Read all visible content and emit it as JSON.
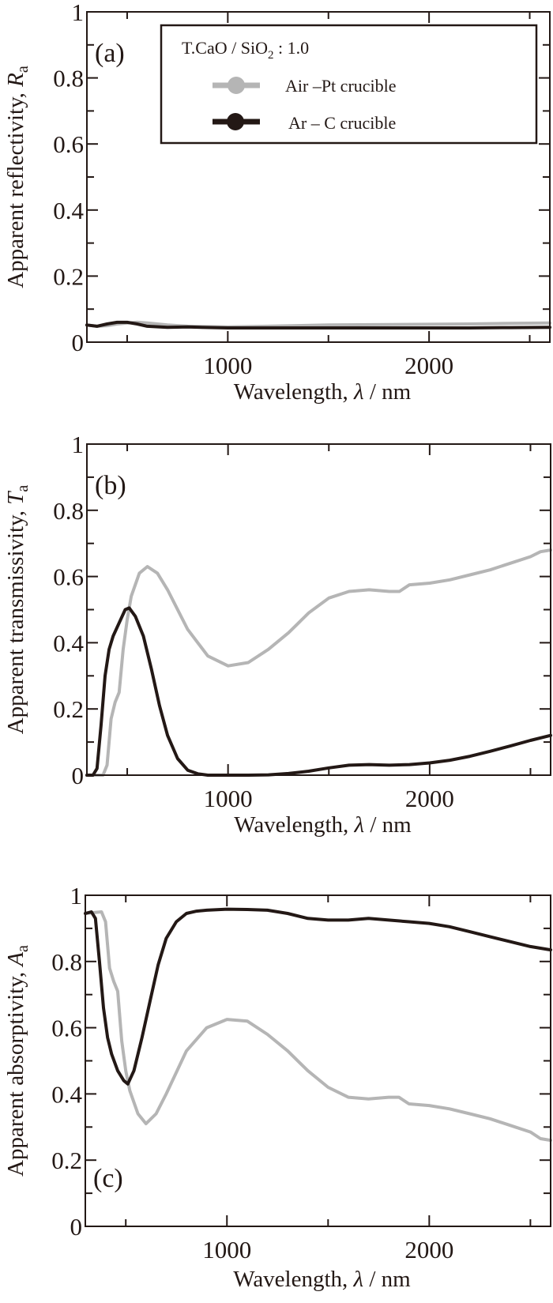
{
  "legend": {
    "title": "T.CaO / SiO",
    "title_sub": "2",
    "title_suffix": " : 1.0",
    "entries": [
      {
        "label": "Air –Pt crucible",
        "color": "#b5b5b5"
      },
      {
        "label": "Ar – C crucible",
        "color": "#231815"
      }
    ]
  },
  "chart_data": [
    {
      "type": "line",
      "panel_label": "(a)",
      "title": "",
      "xlabel": "Wavelength,  λ / nm",
      "ylabel": "Apparent reflectivity, R",
      "ylabel_sub": "a",
      "xlim": [
        300,
        2600
      ],
      "ylim": [
        0,
        1
      ],
      "xticks": [
        1000,
        2000
      ],
      "yticks": [
        0,
        0.2,
        0.4,
        0.6,
        0.8,
        1
      ],
      "ytick_labels": [
        "0",
        "0.2",
        "0.4",
        "0.6",
        "0.8",
        "1"
      ],
      "xtick_labels": [
        "1000",
        "2000"
      ],
      "grid": false,
      "legend_position": "top-right",
      "series": [
        {
          "name": "Air –Pt crucible",
          "color": "#b5b5b5",
          "x": [
            300,
            350,
            400,
            450,
            500,
            550,
            600,
            700,
            800,
            1000,
            1200,
            1500,
            1800,
            2000,
            2200,
            2400,
            2600
          ],
          "y": [
            0.052,
            0.048,
            0.05,
            0.055,
            0.058,
            0.06,
            0.058,
            0.052,
            0.048,
            0.046,
            0.048,
            0.052,
            0.053,
            0.054,
            0.055,
            0.057,
            0.058
          ]
        },
        {
          "name": "Ar – C crucible",
          "color": "#231815",
          "x": [
            300,
            350,
            400,
            450,
            500,
            550,
            600,
            700,
            800,
            1000,
            1200,
            1500,
            1800,
            2000,
            2200,
            2400,
            2600
          ],
          "y": [
            0.052,
            0.048,
            0.055,
            0.06,
            0.06,
            0.055,
            0.048,
            0.045,
            0.046,
            0.043,
            0.043,
            0.043,
            0.043,
            0.043,
            0.043,
            0.044,
            0.045
          ]
        }
      ]
    },
    {
      "type": "line",
      "panel_label": "(b)",
      "title": "",
      "xlabel": "Wavelength,  λ / nm",
      "ylabel": "Apparent transmissivity, T",
      "ylabel_sub": "a",
      "xlim": [
        300,
        2600
      ],
      "ylim": [
        0,
        1
      ],
      "xticks": [
        1000,
        2000
      ],
      "yticks": [
        0,
        0.2,
        0.4,
        0.6,
        0.8,
        1
      ],
      "ytick_labels": [
        "0",
        "0.2",
        "0.4",
        "0.6",
        "0.8",
        "1"
      ],
      "xtick_labels": [
        "1000",
        "2000"
      ],
      "grid": false,
      "series": [
        {
          "name": "Air –Pt crucible",
          "color": "#b5b5b5",
          "x": [
            300,
            380,
            400,
            420,
            440,
            460,
            480,
            500,
            520,
            560,
            600,
            650,
            700,
            800,
            900,
            1000,
            1100,
            1200,
            1300,
            1400,
            1500,
            1600,
            1700,
            1800,
            1850,
            1900,
            2000,
            2100,
            2200,
            2300,
            2400,
            2500,
            2550,
            2600
          ],
          "y": [
            0.0,
            0.0,
            0.03,
            0.17,
            0.22,
            0.25,
            0.38,
            0.47,
            0.54,
            0.61,
            0.63,
            0.61,
            0.56,
            0.44,
            0.36,
            0.33,
            0.34,
            0.38,
            0.43,
            0.49,
            0.535,
            0.555,
            0.56,
            0.555,
            0.555,
            0.575,
            0.58,
            0.59,
            0.605,
            0.62,
            0.64,
            0.66,
            0.675,
            0.68
          ]
        },
        {
          "name": "Ar – C crucible",
          "color": "#231815",
          "x": [
            300,
            330,
            350,
            370,
            390,
            410,
            430,
            460,
            490,
            510,
            540,
            580,
            620,
            660,
            700,
            750,
            800,
            850,
            900,
            1000,
            1100,
            1200,
            1300,
            1400,
            1500,
            1600,
            1700,
            1800,
            1900,
            2000,
            2100,
            2200,
            2300,
            2400,
            2500,
            2600
          ],
          "y": [
            0.0,
            0.0,
            0.02,
            0.15,
            0.3,
            0.38,
            0.42,
            0.46,
            0.5,
            0.505,
            0.48,
            0.42,
            0.32,
            0.21,
            0.12,
            0.05,
            0.015,
            0.004,
            0.0,
            0.0,
            0.0,
            0.001,
            0.005,
            0.012,
            0.022,
            0.03,
            0.032,
            0.03,
            0.032,
            0.037,
            0.045,
            0.057,
            0.072,
            0.088,
            0.105,
            0.12
          ]
        }
      ]
    },
    {
      "type": "line",
      "panel_label": "(c)",
      "title": "",
      "xlabel": "Wavelength,  λ / nm",
      "ylabel": "Apparent absorptivity, A",
      "ylabel_sub": "a",
      "xlim": [
        300,
        2600
      ],
      "ylim": [
        0,
        1
      ],
      "xticks": [
        1000,
        2000
      ],
      "yticks": [
        0,
        0.2,
        0.4,
        0.6,
        0.8,
        1
      ],
      "ytick_labels": [
        "0",
        "0.2",
        "0.4",
        "0.6",
        "0.8",
        "1"
      ],
      "xtick_labels": [
        "1000",
        "2000"
      ],
      "grid": false,
      "series": [
        {
          "name": "Air –Pt crucible",
          "color": "#b5b5b5",
          "x": [
            300,
            380,
            400,
            420,
            440,
            460,
            480,
            500,
            520,
            560,
            600,
            650,
            700,
            800,
            900,
            1000,
            1100,
            1200,
            1300,
            1400,
            1500,
            1600,
            1700,
            1800,
            1850,
            1900,
            2000,
            2100,
            2200,
            2300,
            2400,
            2500,
            2550,
            2600
          ],
          "y": [
            0.945,
            0.95,
            0.92,
            0.78,
            0.74,
            0.71,
            0.56,
            0.47,
            0.41,
            0.34,
            0.31,
            0.34,
            0.4,
            0.53,
            0.6,
            0.625,
            0.62,
            0.58,
            0.53,
            0.47,
            0.42,
            0.39,
            0.385,
            0.39,
            0.39,
            0.37,
            0.365,
            0.355,
            0.34,
            0.325,
            0.305,
            0.285,
            0.265,
            0.26
          ]
        },
        {
          "name": "Ar – C crucible",
          "color": "#231815",
          "x": [
            300,
            330,
            350,
            370,
            390,
            410,
            430,
            460,
            490,
            510,
            540,
            580,
            620,
            660,
            700,
            750,
            800,
            850,
            900,
            1000,
            1100,
            1200,
            1300,
            1400,
            1500,
            1600,
            1700,
            1800,
            1900,
            2000,
            2100,
            2200,
            2300,
            2400,
            2500,
            2600
          ],
          "y": [
            0.945,
            0.95,
            0.93,
            0.8,
            0.66,
            0.57,
            0.52,
            0.47,
            0.44,
            0.43,
            0.47,
            0.57,
            0.68,
            0.79,
            0.87,
            0.92,
            0.945,
            0.952,
            0.955,
            0.958,
            0.957,
            0.955,
            0.945,
            0.93,
            0.925,
            0.925,
            0.93,
            0.925,
            0.92,
            0.915,
            0.905,
            0.89,
            0.875,
            0.86,
            0.845,
            0.835
          ]
        }
      ]
    }
  ]
}
